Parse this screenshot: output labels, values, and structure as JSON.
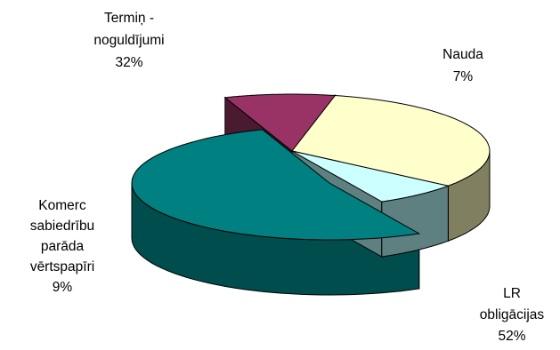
{
  "chart_data": {
    "type": "pie",
    "title": "",
    "slices": [
      {
        "name": "LR obligācijas",
        "label_lines": [
          "LR",
          "obligācijas"
        ],
        "value": 52,
        "value_label": "52%",
        "top_color": "#008080",
        "side_color": "#004d4d",
        "exploded": true
      },
      {
        "name": "Komerc sabiedrību parāda vērtspapīri",
        "label_lines": [
          "Komerc",
          "sabiedrību",
          "parāda",
          "vērtspapīri"
        ],
        "value": 9,
        "value_label": "9%",
        "top_color": "#993366",
        "side_color": "#4a1a30",
        "exploded": false
      },
      {
        "name": "Termiņ - noguldījumi",
        "label_lines": [
          "Termiņ -",
          "noguldījumi"
        ],
        "value": 32,
        "value_label": "32%",
        "top_color": "#ffffcc",
        "side_color": "#808060",
        "exploded": false
      },
      {
        "name": "Nauda",
        "label_lines": [
          "Nauda"
        ],
        "value": 7,
        "value_label": "7%",
        "top_color": "#ccffff",
        "side_color": "#5f8080",
        "exploded": false
      }
    ]
  }
}
